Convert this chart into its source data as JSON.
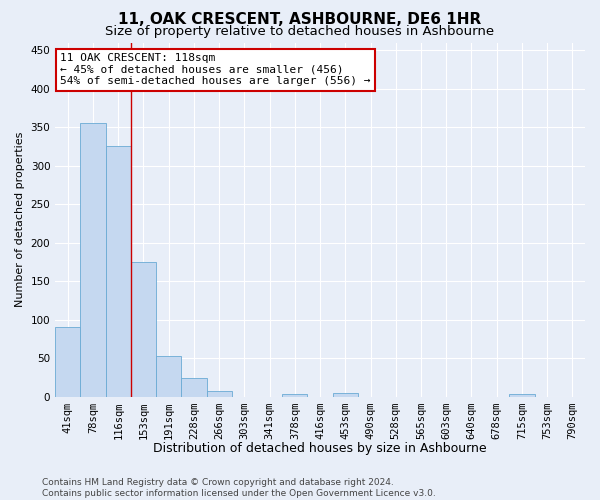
{
  "title": "11, OAK CRESCENT, ASHBOURNE, DE6 1HR",
  "subtitle": "Size of property relative to detached houses in Ashbourne",
  "xlabel": "Distribution of detached houses by size in Ashbourne",
  "ylabel": "Number of detached properties",
  "bin_labels": [
    "41sqm",
    "78sqm",
    "116sqm",
    "153sqm",
    "191sqm",
    "228sqm",
    "266sqm",
    "303sqm",
    "341sqm",
    "378sqm",
    "416sqm",
    "453sqm",
    "490sqm",
    "528sqm",
    "565sqm",
    "603sqm",
    "640sqm",
    "678sqm",
    "715sqm",
    "753sqm",
    "790sqm"
  ],
  "bar_heights": [
    91,
    355,
    325,
    175,
    53,
    25,
    7,
    0,
    0,
    4,
    0,
    5,
    0,
    0,
    0,
    0,
    0,
    0,
    4,
    0,
    0
  ],
  "bar_color": "#c5d8f0",
  "bar_edge_color": "#6aaad4",
  "vline_x_idx": 2,
  "vline_color": "#cc0000",
  "ylim": [
    0,
    460
  ],
  "yticks": [
    0,
    50,
    100,
    150,
    200,
    250,
    300,
    350,
    400,
    450
  ],
  "annotation_line1": "11 OAK CRESCENT: 118sqm",
  "annotation_line2": "← 45% of detached houses are smaller (456)",
  "annotation_line3": "54% of semi-detached houses are larger (556) →",
  "annotation_box_color": "#ffffff",
  "annotation_box_edge": "#cc0000",
  "footer_line1": "Contains HM Land Registry data © Crown copyright and database right 2024.",
  "footer_line2": "Contains public sector information licensed under the Open Government Licence v3.0.",
  "bg_color": "#e8eef8",
  "plot_bg_color": "#e8eef8",
  "grid_color": "#ffffff",
  "title_fontsize": 11,
  "subtitle_fontsize": 9.5,
  "xlabel_fontsize": 9,
  "ylabel_fontsize": 8,
  "tick_fontsize": 7.5,
  "annotation_fontsize": 8,
  "footer_fontsize": 6.5
}
